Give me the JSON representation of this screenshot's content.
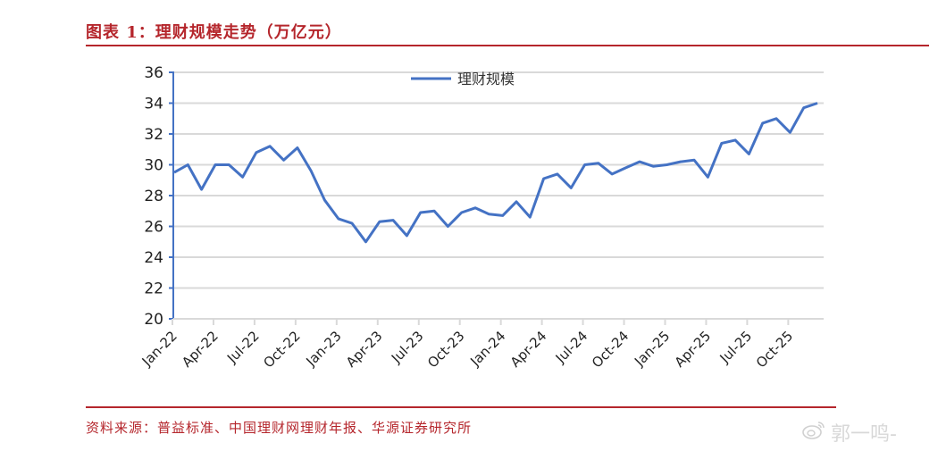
{
  "header": {
    "title": "图表 1：理财规模走势（万亿元）"
  },
  "footer": {
    "source": "资料来源：普益标准、中国理财网理财年报、华源证券研究所",
    "watermark": "郭一鸣-"
  },
  "colors": {
    "accent_red": "#b5262c",
    "series_blue": "#4472c4",
    "grid": "#d9d9d9"
  },
  "chart_data": {
    "type": "line",
    "title": "理财规模走势（万亿元）",
    "xlabel": "",
    "ylabel": "",
    "ylim": [
      20,
      36
    ],
    "yticks": [
      20,
      22,
      24,
      26,
      28,
      30,
      32,
      34,
      36
    ],
    "grid": true,
    "legend_position": "top",
    "x_tick_labels": [
      "Jan-22",
      "Apr-22",
      "Jul-22",
      "Oct-22",
      "Jan-23",
      "Apr-23",
      "Jul-23",
      "Oct-23",
      "Jan-24",
      "Apr-24",
      "Jul-24",
      "Oct-24",
      "Jan-25",
      "Apr-25",
      "Jul-25",
      "Oct-25"
    ],
    "x": [
      "Jan-22",
      "Feb-22",
      "Mar-22",
      "Apr-22",
      "May-22",
      "Jun-22",
      "Jul-22",
      "Aug-22",
      "Sep-22",
      "Oct-22",
      "Nov-22",
      "Dec-22",
      "Jan-23",
      "Feb-23",
      "Mar-23",
      "Apr-23",
      "May-23",
      "Jun-23",
      "Jul-23",
      "Aug-23",
      "Sep-23",
      "Oct-23",
      "Nov-23",
      "Dec-23",
      "Jan-24",
      "Feb-24",
      "Mar-24",
      "Apr-24",
      "May-24",
      "Jun-24",
      "Jul-24",
      "Aug-24",
      "Sep-24",
      "Oct-24",
      "Nov-24",
      "Dec-24",
      "Jan-25",
      "Feb-25",
      "Mar-25",
      "Apr-25",
      "May-25",
      "Jun-25",
      "Jul-25",
      "Aug-25",
      "Sep-25",
      "Oct-25",
      "Nov-25",
      "Dec-25"
    ],
    "series": [
      {
        "name": "理财规模",
        "values": [
          29.5,
          30.0,
          28.4,
          30.0,
          30.0,
          29.2,
          30.8,
          31.2,
          30.3,
          31.1,
          29.6,
          27.7,
          26.5,
          26.2,
          25.0,
          26.3,
          26.4,
          25.4,
          26.9,
          27.0,
          26.0,
          26.9,
          27.2,
          26.8,
          26.7,
          27.6,
          26.6,
          29.1,
          29.4,
          28.5,
          30.0,
          30.1,
          29.4,
          29.8,
          30.2,
          29.9,
          30.0,
          30.2,
          30.3,
          29.2,
          31.4,
          31.6,
          30.7,
          32.7,
          33.0,
          32.1,
          33.7,
          34.0
        ]
      }
    ]
  }
}
